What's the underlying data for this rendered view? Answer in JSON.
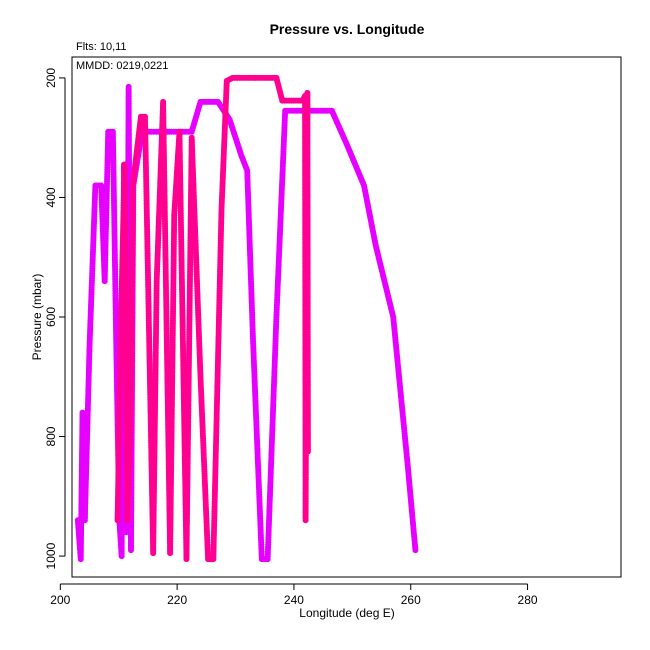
{
  "chart_data": {
    "type": "scatter",
    "title": "Pressure vs. Longitude",
    "xlabel": "Longitude (deg E)",
    "ylabel": "Pressure (mbar)",
    "annotations": [
      "Flts: 10,11",
      "MMDD: 0219,0221"
    ],
    "xlim": [
      202,
      296
    ],
    "ylim": [
      1035,
      165
    ],
    "y_reversed": true,
    "x_ticks": [
      200,
      220,
      240,
      260,
      280
    ],
    "y_ticks": [
      200,
      400,
      600,
      800,
      1000
    ],
    "grid": false,
    "series": [
      {
        "color": "#E600FF",
        "points": [
          [
            203,
            940
          ],
          [
            203.5,
            1005
          ],
          [
            203.8,
            760
          ],
          [
            204.2,
            940
          ],
          [
            205,
            650
          ],
          [
            206,
            380
          ],
          [
            207,
            380
          ],
          [
            207.6,
            540
          ],
          [
            208.2,
            290
          ],
          [
            209,
            290
          ],
          [
            209.6,
            660
          ],
          [
            210.1,
            940
          ],
          [
            210.5,
            1000
          ],
          [
            210.9,
            345
          ],
          [
            211.3,
            960
          ],
          [
            211.7,
            215
          ],
          [
            212.1,
            990
          ],
          [
            212.5,
            380
          ],
          [
            214,
            290
          ],
          [
            218,
            290
          ],
          [
            219,
            290
          ],
          [
            222.5,
            290
          ],
          [
            224,
            240
          ],
          [
            227,
            240
          ],
          [
            229,
            270
          ],
          [
            231,
            330
          ],
          [
            232,
            355
          ],
          [
            233,
            640
          ],
          [
            234.5,
            1005
          ],
          [
            235.5,
            1005
          ],
          [
            237,
            600
          ],
          [
            238.5,
            255
          ],
          [
            246.5,
            255
          ],
          [
            249,
            310
          ],
          [
            252,
            380
          ],
          [
            254,
            480
          ],
          [
            257,
            600
          ],
          [
            258,
            700
          ],
          [
            259.5,
            850
          ],
          [
            260.8,
            990
          ]
        ]
      },
      {
        "color": "#FF0090",
        "points": [
          [
            209.8,
            940
          ],
          [
            210.5,
            560
          ],
          [
            211,
            345
          ],
          [
            211.5,
            940
          ],
          [
            212,
            760
          ],
          [
            212.4,
            380
          ],
          [
            213.8,
            265
          ],
          [
            214.5,
            265
          ],
          [
            215.9,
            995
          ],
          [
            216.5,
            540
          ],
          [
            217.6,
            240
          ],
          [
            218.8,
            995
          ],
          [
            219.5,
            430
          ],
          [
            220.4,
            290
          ],
          [
            221.6,
            1005
          ],
          [
            222.5,
            300
          ],
          [
            224,
            700
          ],
          [
            225.3,
            1005
          ],
          [
            226.2,
            1005
          ],
          [
            227.6,
            420
          ],
          [
            228.5,
            205
          ],
          [
            229.5,
            200
          ],
          [
            237,
            200
          ],
          [
            238,
            238
          ],
          [
            241.5,
            238
          ],
          [
            241.9,
            230
          ],
          [
            242,
            940
          ],
          [
            242.3,
            225
          ],
          [
            242.4,
            825
          ]
        ]
      }
    ]
  }
}
